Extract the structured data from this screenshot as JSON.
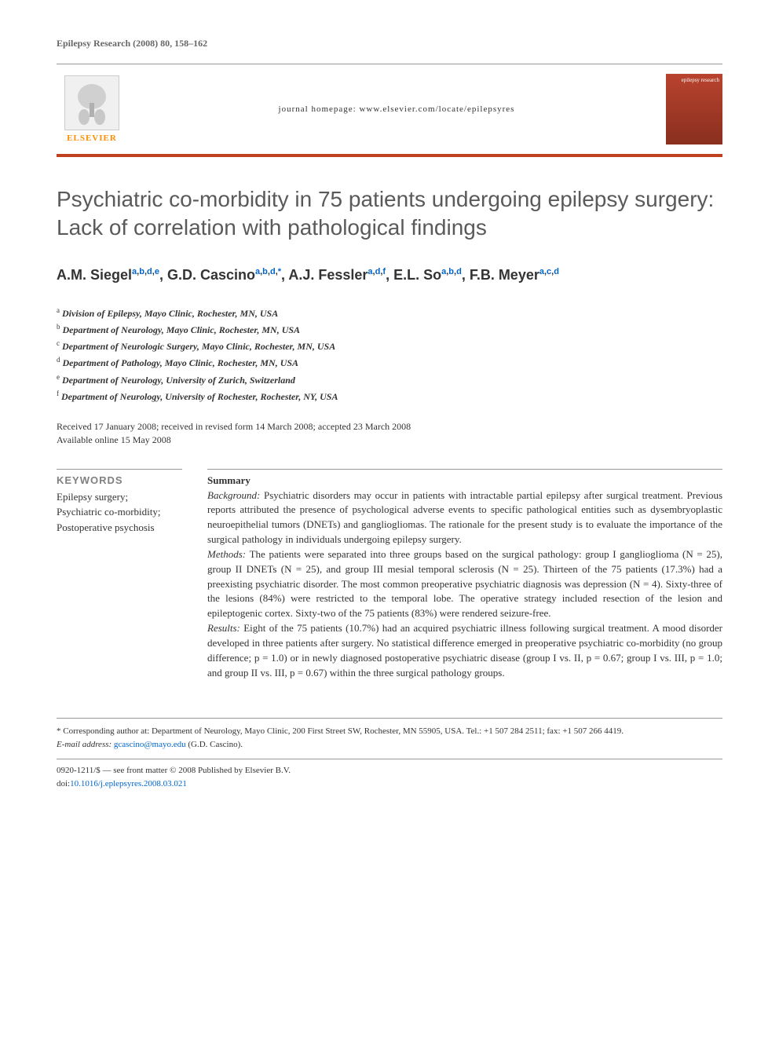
{
  "header": {
    "citation": "Epilepsy Research (2008) 80, 158–162",
    "publisher_name": "ELSEVIER",
    "homepage_label": "journal homepage: www.elsevier.com/locate/epilepsyres",
    "cover_text": "epilepsy research"
  },
  "title": "Psychiatric co-morbidity in 75 patients undergoing epilepsy surgery: Lack of correlation with pathological findings",
  "authors_html": "A.M. Siegel<sup><a>a</a>,<a>b</a>,<a>d</a>,<a>e</a></sup>, G.D. Cascino<sup><a>a</a>,<a>b</a>,<a>d</a>,<a>*</a></sup>, A.J. Fessler<sup><a>a</a>,<a>d</a>,<a>f</a></sup>, E.L. So<sup><a>a</a>,<a>b</a>,<a>d</a></sup>, F.B. Meyer<sup><a>a</a>,<a>c</a>,<a>d</a></sup>",
  "affiliations": [
    {
      "sup": "a",
      "text": "Division of Epilepsy, Mayo Clinic, Rochester, MN, USA"
    },
    {
      "sup": "b",
      "text": "Department of Neurology, Mayo Clinic, Rochester, MN, USA"
    },
    {
      "sup": "c",
      "text": "Department of Neurologic Surgery, Mayo Clinic, Rochester, MN, USA"
    },
    {
      "sup": "d",
      "text": "Department of Pathology, Mayo Clinic, Rochester, MN, USA"
    },
    {
      "sup": "e",
      "text": "Department of Neurology, University of Zurich, Switzerland"
    },
    {
      "sup": "f",
      "text": "Department of Neurology, University of Rochester, Rochester, NY, USA"
    }
  ],
  "dates": {
    "received": "Received 17 January 2008; received in revised form 14 March 2008; accepted 23 March 2008",
    "online": "Available online 15 May 2008"
  },
  "keywords": {
    "heading": "KEYWORDS",
    "list": "Epilepsy surgery;\nPsychiatric co-morbidity;\nPostoperative psychosis"
  },
  "summary": {
    "heading": "Summary",
    "background_label": "Background:",
    "background": "Psychiatric disorders may occur in patients with intractable partial epilepsy after surgical treatment. Previous reports attributed the presence of psychological adverse events to specific pathological entities such as dysembryoplastic neuroepithelial tumors (DNETs) and gangliogliomas. The rationale for the present study is to evaluate the importance of the surgical pathology in individuals undergoing epilepsy surgery.",
    "methods_label": "Methods:",
    "methods": "The patients were separated into three groups based on the surgical pathology: group I ganglioglioma (N = 25), group II DNETs (N = 25), and group III mesial temporal sclerosis (N = 25). Thirteen of the 75 patients (17.3%) had a preexisting psychiatric disorder. The most common preoperative psychiatric diagnosis was depression (N = 4). Sixty-three of the lesions (84%) were restricted to the temporal lobe. The operative strategy included resection of the lesion and epileptogenic cortex. Sixty-two of the 75 patients (83%) were rendered seizure-free.",
    "results_label": "Results:",
    "results": "Eight of the 75 patients (10.7%) had an acquired psychiatric illness following surgical treatment. A mood disorder developed in three patients after surgery. No statistical difference emerged in preoperative psychiatric co-morbidity (no group difference; p = 1.0) or in newly diagnosed postoperative psychiatric disease (group I vs. II, p = 0.67; group I vs. III, p = 1.0; and group II vs. III, p = 0.67) within the three surgical pathology groups."
  },
  "footer": {
    "corr_label": "* Corresponding author at:",
    "corr_text": "Department of Neurology, Mayo Clinic, 200 First Street SW, Rochester, MN 55905, USA. Tel.: +1 507 284 2511; fax: +1 507 266 4419.",
    "email_label": "E-mail address:",
    "email": "gcascino@mayo.edu",
    "email_paren": "(G.D. Cascino).",
    "copyright": "0920-1211/$ — see front matter © 2008 Published by Elsevier B.V.",
    "doi_label": "doi:",
    "doi": "10.1016/j.eplepsyres.2008.03.021"
  },
  "colors": {
    "accent_bar": "#c04020",
    "publisher_orange": "#ff8c00",
    "title_gray": "#5a5a5a",
    "link_blue": "#0066cc",
    "text": "#333333",
    "rule": "#999999"
  }
}
